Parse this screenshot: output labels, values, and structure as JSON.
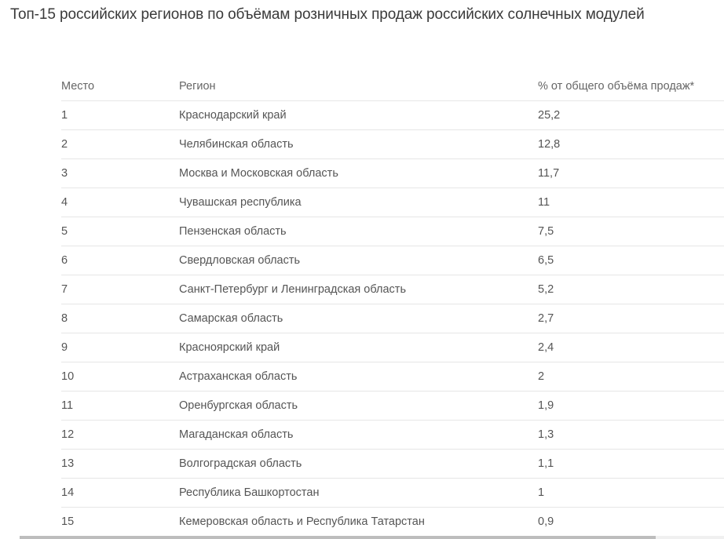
{
  "title": "Топ-15 российских регионов по объёмам розничных продаж российских солнечных модулей",
  "table": {
    "headers": [
      "Место",
      "Регион",
      "% от общего объёма продаж*"
    ],
    "rows": [
      [
        "1",
        "Краснодарский край",
        "25,2"
      ],
      [
        "2",
        "Челябинская область",
        "12,8"
      ],
      [
        "3",
        "Москва и Московская область",
        "11,7"
      ],
      [
        "4",
        "Чувашская республика",
        "11"
      ],
      [
        "5",
        "Пензенская область",
        "7,5"
      ],
      [
        "6",
        "Свердловская область",
        "6,5"
      ],
      [
        "7",
        "Санкт-Петербург и Ленинградская область",
        "5,2"
      ],
      [
        "8",
        "Самарская область",
        "2,7"
      ],
      [
        "9",
        "Красноярский край",
        "2,4"
      ],
      [
        "10",
        "Астраханская область",
        "2"
      ],
      [
        "11",
        "Оренбургская область",
        "1,9"
      ],
      [
        "12",
        "Магаданская область",
        "1,3"
      ],
      [
        "13",
        "Волгоградская область",
        "1,1"
      ],
      [
        "14",
        "Республика Башкортостан",
        "1"
      ],
      [
        "15",
        "Кемеровская область и Республика Татарстан",
        "0,9"
      ]
    ]
  }
}
